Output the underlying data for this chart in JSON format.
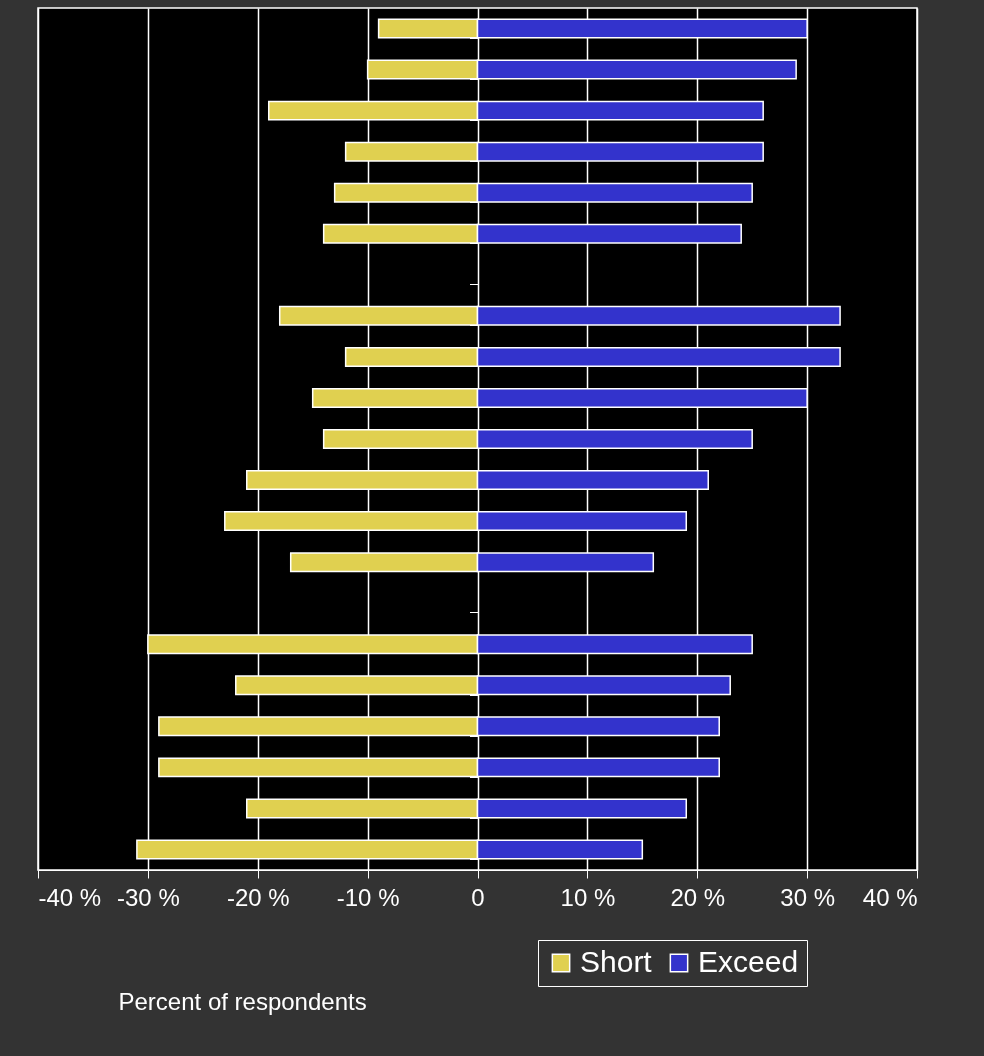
{
  "chart_data": {
    "type": "bar",
    "orientation": "horizontal",
    "xlabel": "Percent of respondents",
    "categories": [
      null,
      null,
      null,
      null,
      null,
      null,
      null,
      null,
      null,
      null,
      null,
      null,
      null,
      null,
      null,
      null,
      null,
      null,
      null,
      null,
      null
    ],
    "series": [
      {
        "name": "Short",
        "color": "#e0d050",
        "values": [
          -9,
          -10,
          -19,
          -12,
          -13,
          -14,
          null,
          -18,
          -12,
          -15,
          -14,
          -21,
          -23,
          -17,
          null,
          -30,
          -22,
          -29,
          -29,
          -21,
          -31
        ]
      },
      {
        "name": "Exceed",
        "color": "#3333cc",
        "values": [
          30,
          29,
          26,
          26,
          25,
          24,
          null,
          33,
          33,
          30,
          25,
          21,
          19,
          16,
          null,
          25,
          23,
          22,
          22,
          19,
          15
        ]
      }
    ],
    "xlim": [
      -40,
      40
    ],
    "xticks": [
      {
        "value": -40,
        "label": "-40 %"
      },
      {
        "value": -30,
        "label": "-30 %"
      },
      {
        "value": -20,
        "label": "-20 %"
      },
      {
        "value": -10,
        "label": "-10 %"
      },
      0,
      {
        "value": 10,
        "label": "10 %"
      },
      {
        "value": 20,
        "label": "20 %"
      },
      {
        "value": 30,
        "label": "30 %"
      },
      {
        "value": 40,
        "label": "40 %"
      }
    ],
    "stacked": true,
    "grid": "x",
    "legend": "bottom right",
    "tick_labels": "x"
  }
}
